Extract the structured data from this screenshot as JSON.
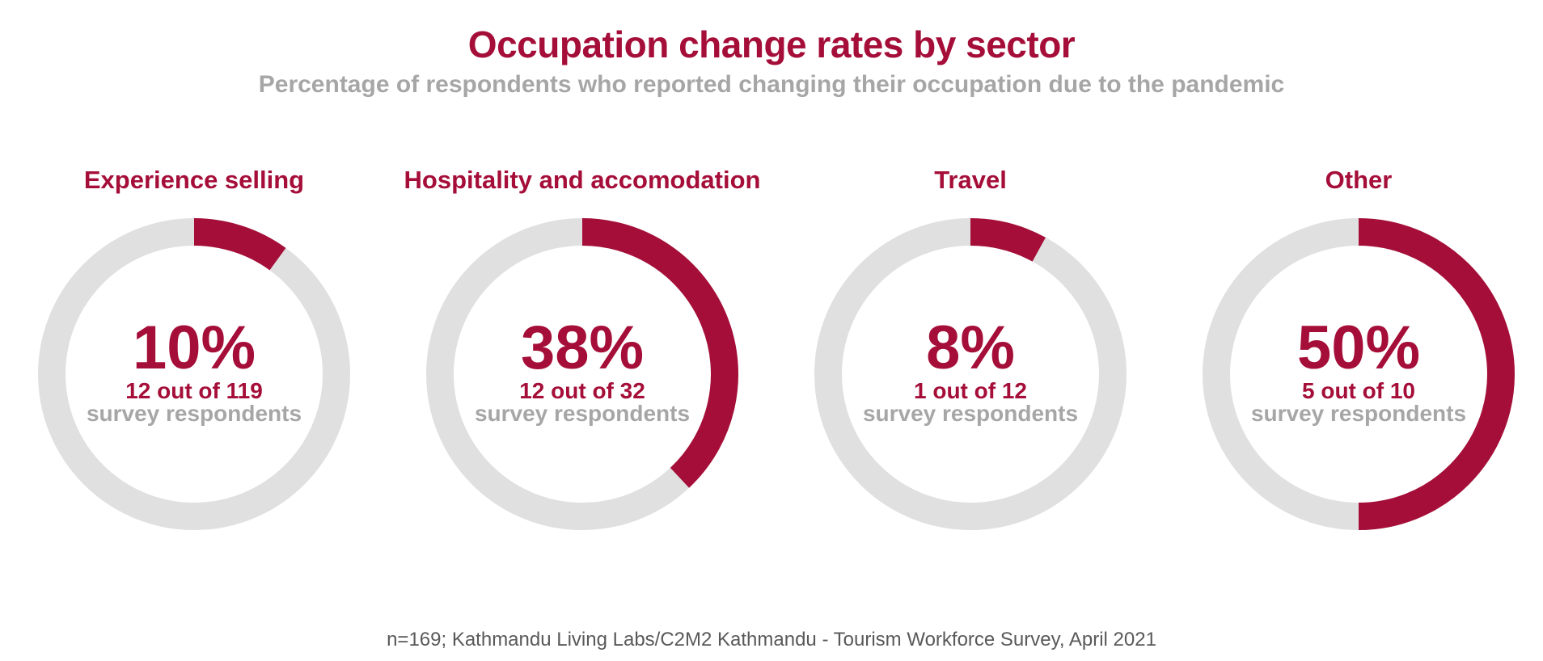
{
  "colors": {
    "accent": "#a50e38",
    "track": "#e0e0e0",
    "muted": "#a6a6a6",
    "footer": "#595959"
  },
  "chart_data": {
    "type": "pie",
    "title": "Occupation change rates by sector",
    "subtitle": "Percentage of respondents who reported changing their occupation due to the pandemic",
    "unit_label": "survey respondents",
    "categories": [
      "Experience selling",
      "Hospitality and accomodation",
      "Travel",
      "Other"
    ],
    "values": [
      10,
      38,
      8,
      50
    ],
    "items": [
      {
        "category": "Experience selling",
        "percent": 10,
        "percent_label": "10%",
        "count_label": "12 out of 119"
      },
      {
        "category": "Hospitality and accomodation",
        "percent": 38,
        "percent_label": "38%",
        "count_label": "12 out of 32"
      },
      {
        "category": "Travel",
        "percent": 8,
        "percent_label": "8%",
        "count_label": "1 out of 12"
      },
      {
        "category": "Other",
        "percent": 50,
        "percent_label": "50%",
        "count_label": "5 out of 10"
      }
    ]
  },
  "footer": {
    "source": "n=169; Kathmandu Living Labs/C2M2 Kathmandu - Tourism Workforce Survey, April 2021"
  }
}
